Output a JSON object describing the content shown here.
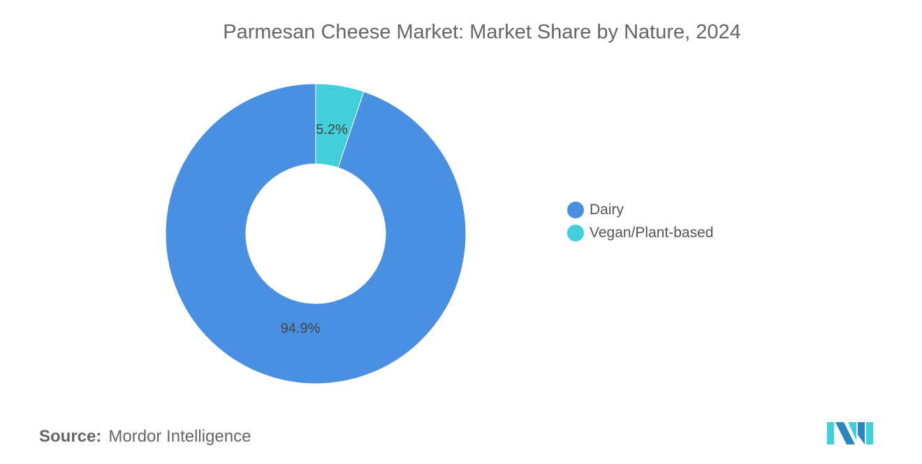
{
  "chart_data": {
    "type": "pie",
    "variant": "donut",
    "title": "Parmesan Cheese Market: Market Share by Nature, 2024",
    "categories": [
      "Vegan/Plant-based",
      "Dairy"
    ],
    "values": [
      5.2,
      94.9
    ],
    "labels": [
      "5.2%",
      "94.9%"
    ],
    "colors": [
      "#40CFDB",
      "#4A90E2"
    ],
    "legend": {
      "placement": "right",
      "entries": [
        "Dairy",
        "Vegan/Plant-based"
      ],
      "colors": [
        "#4A90E2",
        "#40CFDB"
      ]
    }
  },
  "source": {
    "label": "Source:",
    "value": "Mordor Intelligence"
  }
}
